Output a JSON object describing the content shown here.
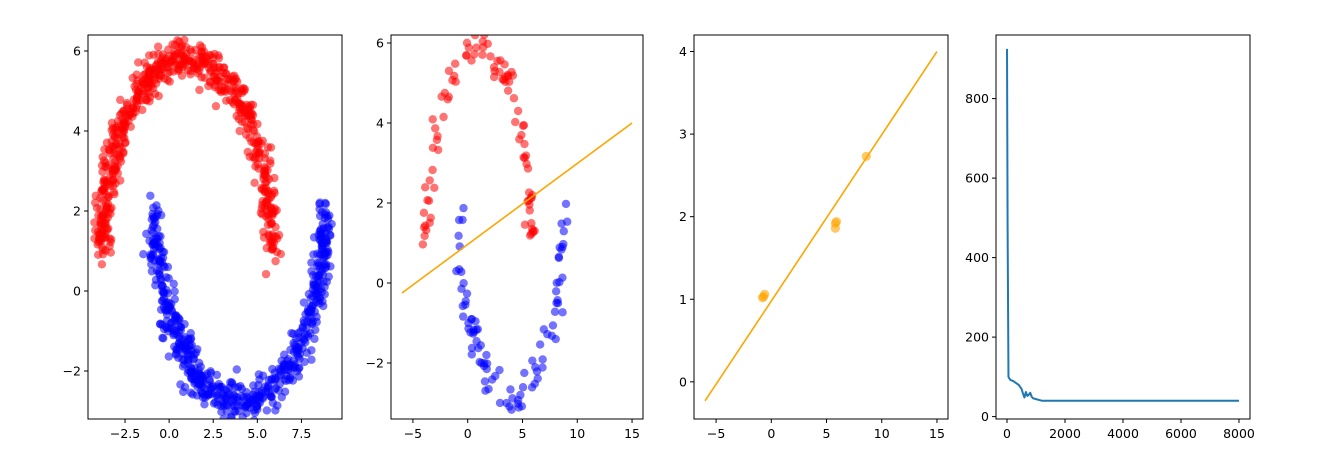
{
  "chart_data": [
    {
      "type": "scatter",
      "xlim": [
        -4.6,
        9.8
      ],
      "ylim": [
        -3.2,
        6.4
      ],
      "xticks": [
        -2.5,
        0.0,
        2.5,
        5.0,
        7.5
      ],
      "xtick_labels": [
        "−2.5",
        "0.0",
        "2.5",
        "5.0",
        "7.5"
      ],
      "yticks": [
        -2,
        0,
        2,
        4,
        6
      ],
      "ytick_labels": [
        "−2",
        "0",
        "2",
        "4",
        "6"
      ],
      "grid": false,
      "series": [
        {
          "color": "#ff0000",
          "marker": "circle",
          "alpha": 0.55,
          "shape": "upper moon arc",
          "center": [
            1.0,
            1.0
          ],
          "radius": 4.8,
          "angle_range_deg": [
            0,
            180
          ],
          "noise": 0.25,
          "n_points": 600,
          "values": "dense upper half-moon from about (-3.8, 1.0) over a peak near (1.0, 5.8) down to about (5.8, 1.9)"
        },
        {
          "color": "#0000ff",
          "marker": "circle",
          "alpha": 0.55,
          "shape": "lower moon arc",
          "center": [
            4.0,
            2.0
          ],
          "radius": 4.8,
          "angle_range_deg": [
            180,
            360
          ],
          "noise": 0.25,
          "n_points": 600,
          "values": "dense lower half-moon from about (-0.8, 1.0) through a trough near (4.0, -2.8) up to about (8.8, 2.5)"
        }
      ]
    },
    {
      "type": "scatter",
      "xlim": [
        -7.0,
        16.0
      ],
      "ylim": [
        -3.4,
        6.2
      ],
      "xticks": [
        -5,
        0,
        5,
        10,
        15
      ],
      "xtick_labels": [
        "−5",
        "0",
        "5",
        "10",
        "15"
      ],
      "yticks": [
        -2,
        0,
        2,
        4,
        6
      ],
      "ytick_labels": [
        "−2",
        "0",
        "2",
        "4",
        "6"
      ],
      "grid": false,
      "series": [
        {
          "color": "#ff0000",
          "marker": "circle",
          "alpha": 0.55,
          "shape": "upper moon arc",
          "center": [
            1.0,
            1.0
          ],
          "radius": 4.8,
          "angle_range_deg": [
            0,
            180
          ],
          "noise": 0.22,
          "n_points": 90
        },
        {
          "color": "#0000ff",
          "marker": "circle",
          "alpha": 0.55,
          "shape": "lower moon arc",
          "center": [
            4.0,
            2.0
          ],
          "radius": 4.8,
          "angle_range_deg": [
            180,
            360
          ],
          "noise": 0.22,
          "n_points": 90
        }
      ],
      "line": {
        "color": "#ffa500",
        "x": [
          -6.0,
          15.0
        ],
        "y": [
          -0.25,
          4.0
        ]
      }
    },
    {
      "type": "scatter",
      "xlim": [
        -7.0,
        16.0
      ],
      "ylim": [
        -0.45,
        4.2
      ],
      "xticks": [
        -5,
        0,
        5,
        10,
        15
      ],
      "xtick_labels": [
        "−5",
        "0",
        "5",
        "10",
        "15"
      ],
      "yticks": [
        0,
        1,
        2,
        3,
        4
      ],
      "ytick_labels": [
        "0",
        "1",
        "2",
        "3",
        "4"
      ],
      "grid": false,
      "points": {
        "color": "#ffa500",
        "alpha": 0.6,
        "x": [
          -0.8,
          -0.6,
          -0.7,
          5.8,
          5.8,
          5.9,
          8.6
        ],
        "y": [
          1.02,
          1.06,
          1.03,
          1.92,
          1.86,
          1.94,
          2.73
        ]
      },
      "line": {
        "color": "#ffa500",
        "x": [
          -6.0,
          15.0
        ],
        "y": [
          -0.23,
          4.0
        ]
      }
    },
    {
      "type": "line",
      "xlim": [
        -380,
        8380
      ],
      "ylim": [
        -6,
        960
      ],
      "xticks": [
        0,
        2000,
        4000,
        6000,
        8000
      ],
      "xtick_labels": [
        "0",
        "2000",
        "4000",
        "6000",
        "8000"
      ],
      "yticks": [
        0,
        200,
        400,
        600,
        800
      ],
      "ytick_labels": [
        "0",
        "200",
        "400",
        "600",
        "800"
      ],
      "grid": false,
      "series": [
        {
          "color": "#1f77b4",
          "x": [
            0,
            20,
            50,
            80,
            120,
            200,
            300,
            400,
            500,
            550,
            600,
            650,
            700,
            750,
            800,
            850,
            900,
            1000,
            1100,
            1200,
            1500,
            2000,
            3000,
            4000,
            5000,
            6000,
            7000,
            8000
          ],
          "y": [
            925,
            480,
            100,
            96,
            92,
            90,
            85,
            80,
            70,
            58,
            48,
            62,
            52,
            55,
            60,
            50,
            46,
            44,
            42,
            40,
            40,
            40,
            40,
            40,
            40,
            40,
            40,
            40
          ]
        }
      ]
    }
  ]
}
